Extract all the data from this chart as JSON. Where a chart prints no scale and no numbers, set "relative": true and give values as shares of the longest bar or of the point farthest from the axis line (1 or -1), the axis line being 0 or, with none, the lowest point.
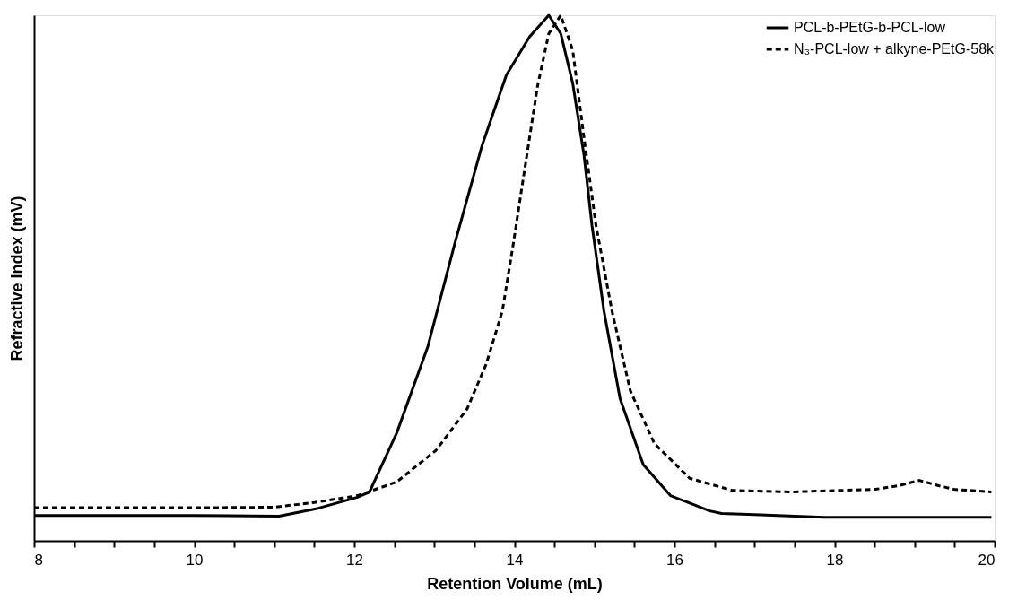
{
  "chart_data": {
    "type": "line",
    "relative": true,
    "xlabel": "Retention Volume (mL)",
    "ylabel": "Refractive Index (mV)",
    "xlim": [
      8,
      20
    ],
    "xticks": [
      8,
      {
        "value": 8.5,
        "label": null
      },
      {
        "value": 9,
        "label": null
      },
      {
        "value": 9.5,
        "label": null
      },
      10,
      {
        "value": 10.5,
        "label": null
      },
      {
        "value": 11,
        "label": null
      },
      {
        "value": 11.5,
        "label": null
      },
      12,
      {
        "value": 12.5,
        "label": null
      },
      {
        "value": 13,
        "label": null
      },
      {
        "value": 13.5,
        "label": null
      },
      14,
      {
        "value": 14.5,
        "label": null
      },
      {
        "value": 15,
        "label": null
      },
      {
        "value": 15.5,
        "label": null
      },
      16,
      {
        "value": 16.5,
        "label": null
      },
      {
        "value": 17,
        "label": null
      },
      {
        "value": 17.5,
        "label": null
      },
      18,
      {
        "value": 18.5,
        "label": null
      },
      {
        "value": 19,
        "label": null
      },
      {
        "value": 19.5,
        "label": null
      },
      20
    ],
    "legend": "top right",
    "grid": false,
    "marker": "none",
    "series": [
      {
        "name": "PCL-b-PEtG-b-PCL-low",
        "color": "#000000",
        "line_style": "solid",
        "x": [
          8,
          10,
          11.06,
          11.55,
          12.04,
          12.19,
          12.53,
          12.92,
          13.26,
          13.6,
          13.9,
          14.19,
          14.43,
          14.58,
          14.73,
          14.87,
          14.97,
          15.12,
          15.32,
          15.61,
          15.95,
          16.44,
          16.59,
          17,
          17.87,
          19,
          19.96
        ],
        "values": [
          0.048,
          0.048,
          0.047,
          0.062,
          0.083,
          0.093,
          0.205,
          0.37,
          0.568,
          0.754,
          0.886,
          0.959,
          1.0,
          0.965,
          0.87,
          0.734,
          0.6,
          0.437,
          0.271,
          0.145,
          0.086,
          0.057,
          0.052,
          0.05,
          0.045,
          0.045,
          0.045
        ]
      },
      {
        "name": "N₃-PCL-low + alkyne-PEtG-58k",
        "color": "#000000",
        "line_style": "dashed",
        "x": [
          8,
          9,
          10,
          11,
          11.5,
          12.04,
          12.53,
          13.02,
          13.41,
          13.65,
          13.85,
          13.99,
          14.09,
          14.19,
          14.29,
          14.43,
          14.58,
          14.73,
          14.87,
          15.02,
          15.22,
          15.45,
          15.75,
          16.19,
          16.72,
          17.45,
          18.51,
          18.8,
          19.06,
          19.3,
          19.49,
          19.96
        ],
        "values": [
          0.063,
          0.063,
          0.063,
          0.064,
          0.073,
          0.086,
          0.112,
          0.172,
          0.251,
          0.337,
          0.437,
          0.568,
          0.668,
          0.767,
          0.865,
          0.965,
          1.0,
          0.933,
          0.767,
          0.6,
          0.437,
          0.285,
          0.185,
          0.119,
          0.096,
          0.093,
          0.098,
          0.105,
          0.115,
          0.105,
          0.098,
          0.093
        ]
      }
    ]
  }
}
